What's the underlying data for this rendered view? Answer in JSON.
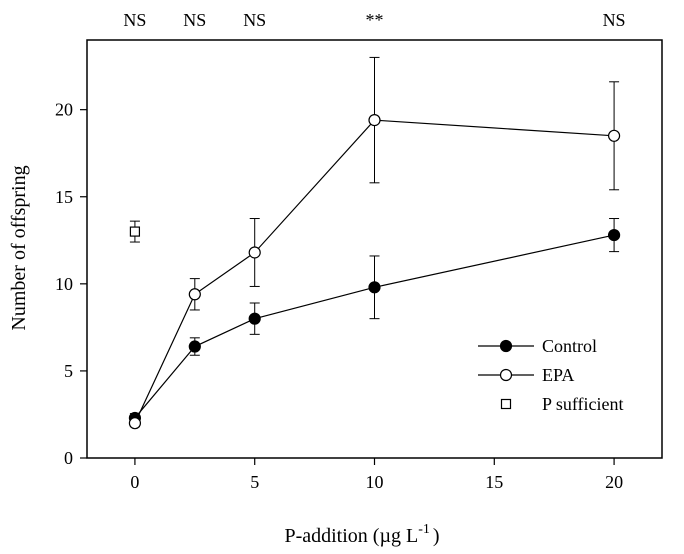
{
  "chart_data": {
    "type": "line",
    "title": "",
    "xlabel": "P-addition (µg L",
    "xlabel_exponent": "-1",
    "xlabel_suffix": ")",
    "ylabel": "Number of offspring",
    "xlim": [
      -2,
      22
    ],
    "ylim": [
      0,
      24
    ],
    "xticks": [
      0,
      5,
      10,
      15,
      20
    ],
    "yticks": [
      0,
      5,
      10,
      15,
      20
    ],
    "grid": false,
    "legend_position": "lower-right",
    "significance": [
      {
        "x": 0,
        "label": "NS"
      },
      {
        "x": 2.5,
        "label": "NS"
      },
      {
        "x": 5,
        "label": "NS"
      },
      {
        "x": 10,
        "label": "**"
      },
      {
        "x": 20,
        "label": "NS"
      }
    ],
    "series": [
      {
        "name": "Control",
        "marker": "filled-circle",
        "connected": true,
        "x": [
          0,
          2.5,
          5,
          10,
          20
        ],
        "y": [
          2.3,
          6.4,
          8.0,
          9.8,
          12.8
        ],
        "err": [
          0.25,
          0.5,
          0.9,
          1.8,
          0.95
        ]
      },
      {
        "name": "EPA",
        "marker": "open-circle",
        "connected": true,
        "x": [
          0,
          2.5,
          5,
          10,
          20
        ],
        "y": [
          2.0,
          9.4,
          11.8,
          19.4,
          18.5
        ],
        "err": [
          0.2,
          0.9,
          1.95,
          3.6,
          3.1
        ]
      },
      {
        "name": "P sufficient",
        "marker": "open-square",
        "connected": false,
        "x": [
          0
        ],
        "y": [
          13.0
        ],
        "err": [
          0.6
        ]
      }
    ]
  }
}
